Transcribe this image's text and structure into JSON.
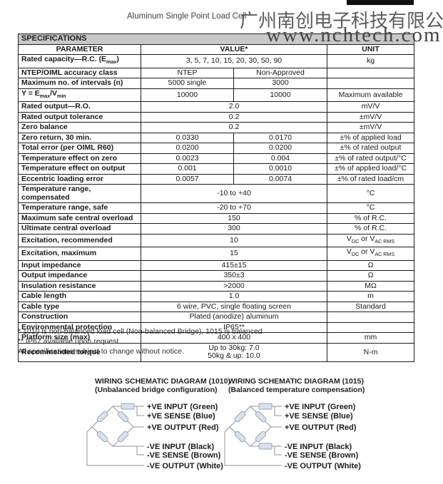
{
  "header": {
    "title": "Aluminum Single Point Load Cell",
    "watermark_cn": "广州南创电子科技有限公司",
    "watermark_url": "www.nchtech.com"
  },
  "table": {
    "section_title": "SPECIFICATIONS",
    "columns": {
      "parameter": "PARAMETER",
      "value": "VALUE*",
      "unit": "UNIT"
    },
    "rows": [
      {
        "p": "Rated capacity—R.C. (E~max~)",
        "v": "3, 5, 7, 10, 15, 20, 30, 50, 90",
        "u": "kg"
      },
      {
        "p": "NTEP/OIML accuracy class",
        "v1": "NTEP",
        "v2": "Non-Approved",
        "u": ""
      },
      {
        "p": "Maximum no. of intervals (n)",
        "v1": "5000 single",
        "v2": "3000",
        "u": ""
      },
      {
        "p": "Y = E~max~/V~min~",
        "v1": "10000",
        "v2": "10000",
        "u": "Maximum available"
      },
      {
        "p": "Rated output—R.O.",
        "v": "2.0",
        "u": "mV/V"
      },
      {
        "p": "Rated output tolerance",
        "v": "0.2",
        "u": "±mV/V"
      },
      {
        "p": "Zero balance",
        "v": "0.2",
        "u": "±mV/V"
      },
      {
        "p": "Zero return, 30 min.",
        "v1": "0.0330",
        "v2": "0.0170",
        "u": "±% of applied load"
      },
      {
        "p": "Total error (per OIML R60)",
        "v1": "0.0200",
        "v2": "0.0200",
        "u": "±% of rated output"
      },
      {
        "p": "Temperature effect on zero",
        "v1": "0.0023",
        "v2": "0.004",
        "u": "±% of rated output/°C"
      },
      {
        "p": "Temperature effect on output",
        "v1": "0.001",
        "v2": "0.0010",
        "u": "±% of applied load/°C"
      },
      {
        "p": "Eccentric loading error",
        "v1": "0.0057",
        "v2": "0.0074",
        "u": "±% of rated load/cm"
      },
      {
        "p": "Temperature range, compensated",
        "v": "-10 to +40",
        "u": "°C"
      },
      {
        "p": "Temperature range, safe",
        "v": "-20 to +70",
        "u": "°C"
      },
      {
        "p": "Maximum safe central overload",
        "v": "150",
        "u": "% of R.C."
      },
      {
        "p": "Ultimate central overload",
        "v": "300",
        "u": "% of R.C."
      },
      {
        "p": "Excitation, recommended",
        "v": "10",
        "u": "V~DC~ or V~AC RMS~"
      },
      {
        "p": "Excitation, maximum",
        "v": "15",
        "u": "V~DC~ or V~AC RMS~"
      },
      {
        "p": "Input impedance",
        "v": "415±15",
        "u": "Ω"
      },
      {
        "p": "Output impedance",
        "v": "350±3",
        "u": "Ω"
      },
      {
        "p": "Insulation resistance",
        "v": ">2000",
        "u": "MΩ"
      },
      {
        "p": "Cable length",
        "v": "1.0",
        "u": "m"
      },
      {
        "p": "Cable type",
        "v": "6 wire, PVC, single floating screen",
        "u": "Standard"
      },
      {
        "p": "Construction",
        "v": "Plated (anodize) aluminum",
        "u": ""
      },
      {
        "p": "Environmental protection",
        "v": "IP65**",
        "u": ""
      },
      {
        "p": "Platform size (max)",
        "v": "400 x 400",
        "u": "mm"
      },
      {
        "p": "Recommended torque",
        "v": "Up to 30kg: 7.0\n50kg & up: 10.0",
        "u": "N-m"
      }
    ]
  },
  "footnotes": [
    "* 1010 is non-balanced load cell (Non-balanced Bridge), 1015 is balanced",
    "** IP67 available upon request",
    "All specifications subject to change without notice."
  ],
  "diagrams": [
    {
      "title": "WIRING SCHEMATIC DIAGRAM (1010)",
      "subtitle": "(Unbalanced bridge configuration)",
      "labels": [
        "+VE INPUT (Green)",
        "+VE SENSE (Blue)",
        "+VE OUTPUT (Red)",
        "-VE INPUT (Black)",
        "-VE SENSE (Brown)",
        "-VE OUTPUT (White)"
      ]
    },
    {
      "title": "WIRING SCHEMATIC DIAGRAM (1015)",
      "subtitle": "(Balanced temperature compensation)",
      "labels": [
        "+VE INPUT (Green)",
        "+VE SENSE (Blue)",
        "+VE OUTPUT (Red)",
        "-VE INPUT (Black)",
        "-VE SENSE (Brown)",
        "-VE OUTPUT (White)"
      ]
    }
  ],
  "colors": {
    "section_bar_bg": "#c8c8c8",
    "gauge_fill": "#d9e1ec",
    "gauge_stroke": "#94a7bc",
    "wire": "#939393",
    "watermark": "#5c5c5c"
  }
}
